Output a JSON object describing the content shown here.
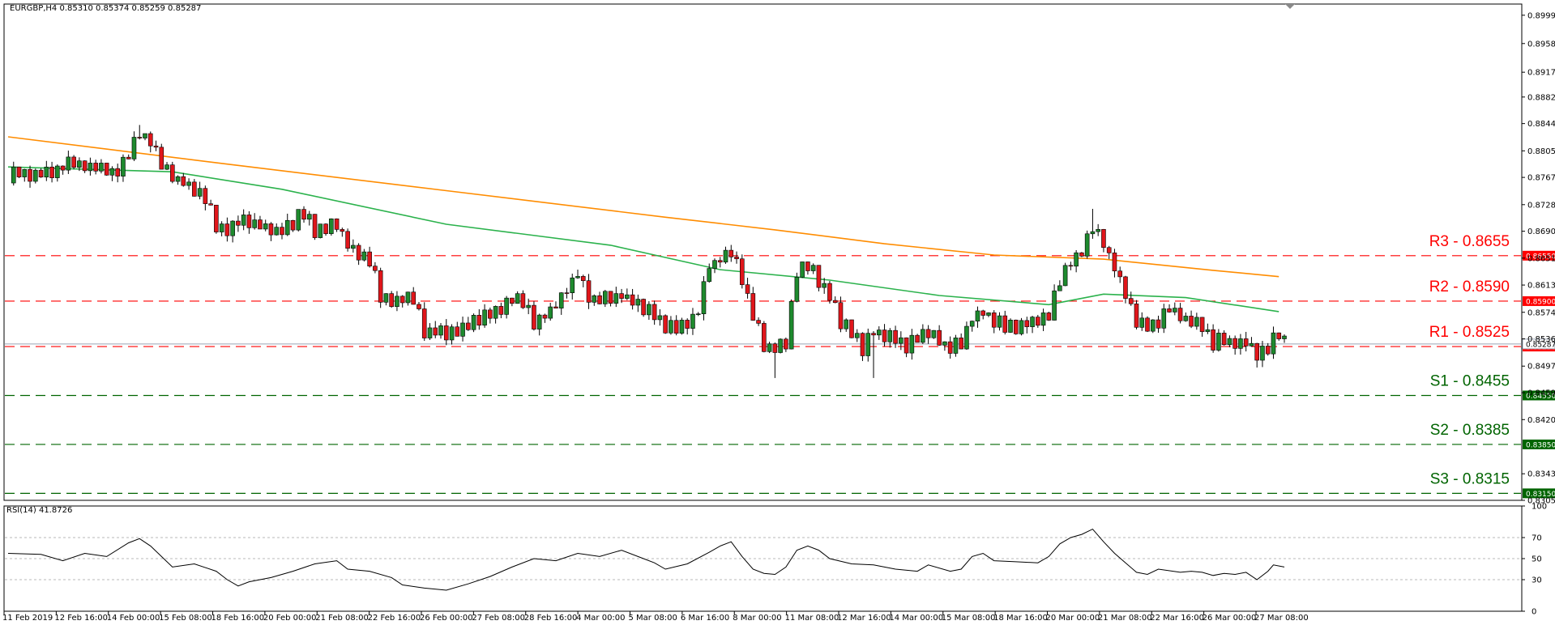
{
  "chart_data": {
    "type": "candlestick",
    "symbol_header": "EURGBP,H4  0.85310 0.85374 0.85259 0.85287",
    "rsi_header": "RSI(14) 41.8726",
    "ylim": [
      0.8305,
      0.9015
    ],
    "rsi_ylim": [
      0,
      100
    ],
    "price_ticks": [
      "0.89990",
      "0.89585",
      "0.89175",
      "0.88820",
      "0.88440",
      "0.88050",
      "0.87670",
      "0.87280",
      "0.86900",
      "0.86515",
      "0.86130",
      "0.85740",
      "0.85360",
      "0.84970",
      "0.84590",
      "0.84205",
      "0.83430",
      "0.83050"
    ],
    "rsi_ticks": [
      "100",
      "70",
      "50",
      "30",
      "0"
    ],
    "x_labels": [
      "11 Feb 2019",
      "12 Feb 16:00",
      "14 Feb 00:00",
      "15 Feb 08:00",
      "18 Feb 16:00",
      "20 Feb 00:00",
      "21 Feb 08:00",
      "22 Feb 16:00",
      "26 Feb 00:00",
      "27 Feb 08:00",
      "28 Feb 16:00",
      "4 Mar 00:00",
      "5 Mar 08:00",
      "6 Mar 16:00",
      "8 Mar 00:00",
      "11 Mar 08:00",
      "12 Mar 16:00",
      "14 Mar 00:00",
      "15 Mar 08:00",
      "18 Mar 16:00",
      "20 Mar 00:00",
      "21 Mar 08:00",
      "22 Mar 16:00",
      "26 Mar 00:00",
      "27 Mar 08:00"
    ],
    "levels": [
      {
        "label": "R3 - 0.8655",
        "price": 0.8655,
        "tag": "0.86550",
        "kind": "resistance"
      },
      {
        "label": "R2 - 0.8590",
        "price": 0.859,
        "tag": "0.85900",
        "kind": "resistance"
      },
      {
        "label": "R1 - 0.8525",
        "price": 0.8525,
        "tag": "0.85250",
        "kind": "resistance"
      },
      {
        "label": "S1 - 0.8455",
        "price": 0.8455,
        "tag": "0.84550",
        "kind": "support"
      },
      {
        "label": "S2 - 0.8385",
        "price": 0.8385,
        "tag": "0.83850",
        "kind": "support"
      },
      {
        "label": "S3 - 0.8315",
        "price": 0.8315,
        "tag": "0.83150",
        "kind": "support"
      }
    ],
    "current_price_tag": "0.85287",
    "current_price": 0.85287,
    "close_path": [
      [
        0,
        0.877
      ],
      [
        8,
        0.8775
      ],
      [
        12,
        0.8788
      ],
      [
        16,
        0.878
      ],
      [
        20,
        0.8772
      ],
      [
        22,
        0.8798
      ],
      [
        24,
        0.883
      ],
      [
        26,
        0.882
      ],
      [
        28,
        0.8788
      ],
      [
        30,
        0.8765
      ],
      [
        32,
        0.8762
      ],
      [
        34,
        0.8752
      ],
      [
        36,
        0.8738
      ],
      [
        38,
        0.87
      ],
      [
        40,
        0.869
      ],
      [
        42,
        0.8705
      ],
      [
        46,
        0.8698
      ],
      [
        50,
        0.869
      ],
      [
        52,
        0.8702
      ],
      [
        54,
        0.8718
      ],
      [
        56,
        0.869
      ],
      [
        60,
        0.8698
      ],
      [
        62,
        0.867
      ],
      [
        66,
        0.8645
      ],
      [
        68,
        0.86
      ],
      [
        70,
        0.859
      ],
      [
        74,
        0.8592
      ],
      [
        76,
        0.8545
      ],
      [
        80,
        0.8545
      ],
      [
        84,
        0.8558
      ],
      [
        88,
        0.857
      ],
      [
        90,
        0.8575
      ],
      [
        92,
        0.859
      ],
      [
        94,
        0.8588
      ],
      [
        96,
        0.856
      ],
      [
        100,
        0.8585
      ],
      [
        102,
        0.8605
      ],
      [
        104,
        0.863
      ],
      [
        106,
        0.8598
      ],
      [
        108,
        0.859
      ],
      [
        112,
        0.86
      ],
      [
        116,
        0.8582
      ],
      [
        118,
        0.857
      ],
      [
        120,
        0.855
      ],
      [
        124,
        0.8556
      ],
      [
        126,
        0.8575
      ],
      [
        128,
        0.864
      ],
      [
        130,
        0.865
      ],
      [
        132,
        0.8665
      ],
      [
        134,
        0.862
      ],
      [
        136,
        0.857
      ],
      [
        138,
        0.8525
      ],
      [
        140,
        0.852
      ],
      [
        142,
        0.853
      ],
      [
        144,
        0.8635
      ],
      [
        146,
        0.864
      ],
      [
        148,
        0.862
      ],
      [
        150,
        0.8598
      ],
      [
        152,
        0.856
      ],
      [
        154,
        0.8545
      ],
      [
        156,
        0.852
      ],
      [
        158,
        0.8548
      ],
      [
        162,
        0.8538
      ],
      [
        164,
        0.8525
      ],
      [
        166,
        0.8538
      ],
      [
        168,
        0.8548
      ],
      [
        170,
        0.853
      ],
      [
        172,
        0.8522
      ],
      [
        174,
        0.853
      ],
      [
        176,
        0.857
      ],
      [
        178,
        0.8574
      ],
      [
        180,
        0.8558
      ],
      [
        184,
        0.8555
      ],
      [
        188,
        0.856
      ],
      [
        190,
        0.8568
      ],
      [
        192,
        0.862
      ],
      [
        194,
        0.865
      ],
      [
        196,
        0.866
      ],
      [
        198,
        0.87
      ],
      [
        200,
        0.867
      ],
      [
        202,
        0.864
      ],
      [
        204,
        0.86
      ],
      [
        206,
        0.8558
      ],
      [
        208,
        0.855
      ],
      [
        210,
        0.8558
      ],
      [
        212,
        0.8585
      ],
      [
        214,
        0.8568
      ],
      [
        216,
        0.856
      ],
      [
        218,
        0.855
      ],
      [
        220,
        0.853
      ],
      [
        222,
        0.8535
      ],
      [
        224,
        0.8528
      ],
      [
        226,
        0.8535
      ],
      [
        228,
        0.851
      ],
      [
        230,
        0.8525
      ],
      [
        232,
        0.8542
      ],
      [
        233,
        0.8529
      ]
    ],
    "ma_orange": [
      [
        0,
        0.8825
      ],
      [
        40,
        0.8786
      ],
      [
        80,
        0.8748
      ],
      [
        120,
        0.871
      ],
      [
        140,
        0.8692
      ],
      [
        160,
        0.8672
      ],
      [
        180,
        0.8656
      ],
      [
        200,
        0.865
      ],
      [
        220,
        0.8634
      ],
      [
        232,
        0.8625
      ]
    ],
    "ma_green": [
      [
        0,
        0.8782
      ],
      [
        30,
        0.8775
      ],
      [
        50,
        0.875
      ],
      [
        80,
        0.87
      ],
      [
        110,
        0.867
      ],
      [
        130,
        0.8635
      ],
      [
        150,
        0.862
      ],
      [
        170,
        0.8598
      ],
      [
        190,
        0.8585
      ],
      [
        200,
        0.86
      ],
      [
        215,
        0.8595
      ],
      [
        232,
        0.8575
      ]
    ],
    "rsi": [
      [
        0,
        55
      ],
      [
        6,
        54
      ],
      [
        10,
        48
      ],
      [
        14,
        55
      ],
      [
        18,
        52
      ],
      [
        22,
        65
      ],
      [
        24,
        69
      ],
      [
        26,
        62
      ],
      [
        28,
        52
      ],
      [
        30,
        42
      ],
      [
        34,
        45
      ],
      [
        38,
        38
      ],
      [
        40,
        30
      ],
      [
        42,
        24
      ],
      [
        44,
        28
      ],
      [
        48,
        32
      ],
      [
        52,
        38
      ],
      [
        56,
        45
      ],
      [
        60,
        48
      ],
      [
        62,
        40
      ],
      [
        66,
        38
      ],
      [
        70,
        32
      ],
      [
        72,
        25
      ],
      [
        76,
        22
      ],
      [
        80,
        20
      ],
      [
        84,
        26
      ],
      [
        88,
        33
      ],
      [
        92,
        42
      ],
      [
        96,
        50
      ],
      [
        100,
        48
      ],
      [
        104,
        55
      ],
      [
        108,
        52
      ],
      [
        112,
        58
      ],
      [
        116,
        50
      ],
      [
        118,
        46
      ],
      [
        120,
        40
      ],
      [
        124,
        45
      ],
      [
        128,
        56
      ],
      [
        130,
        62
      ],
      [
        132,
        66
      ],
      [
        134,
        52
      ],
      [
        136,
        40
      ],
      [
        138,
        36
      ],
      [
        140,
        35
      ],
      [
        142,
        42
      ],
      [
        144,
        58
      ],
      [
        146,
        62
      ],
      [
        148,
        58
      ],
      [
        150,
        50
      ],
      [
        154,
        45
      ],
      [
        158,
        44
      ],
      [
        162,
        40
      ],
      [
        166,
        38
      ],
      [
        168,
        44
      ],
      [
        172,
        38
      ],
      [
        174,
        40
      ],
      [
        176,
        52
      ],
      [
        178,
        55
      ],
      [
        180,
        48
      ],
      [
        184,
        47
      ],
      [
        188,
        46
      ],
      [
        190,
        52
      ],
      [
        192,
        64
      ],
      [
        194,
        70
      ],
      [
        196,
        73
      ],
      [
        198,
        78
      ],
      [
        200,
        66
      ],
      [
        202,
        55
      ],
      [
        204,
        46
      ],
      [
        206,
        37
      ],
      [
        208,
        35
      ],
      [
        210,
        40
      ],
      [
        214,
        37
      ],
      [
        216,
        38
      ],
      [
        218,
        37
      ],
      [
        220,
        34
      ],
      [
        222,
        36
      ],
      [
        224,
        35
      ],
      [
        226,
        37
      ],
      [
        228,
        30
      ],
      [
        230,
        38
      ],
      [
        231,
        44
      ],
      [
        233,
        42
      ]
    ]
  }
}
